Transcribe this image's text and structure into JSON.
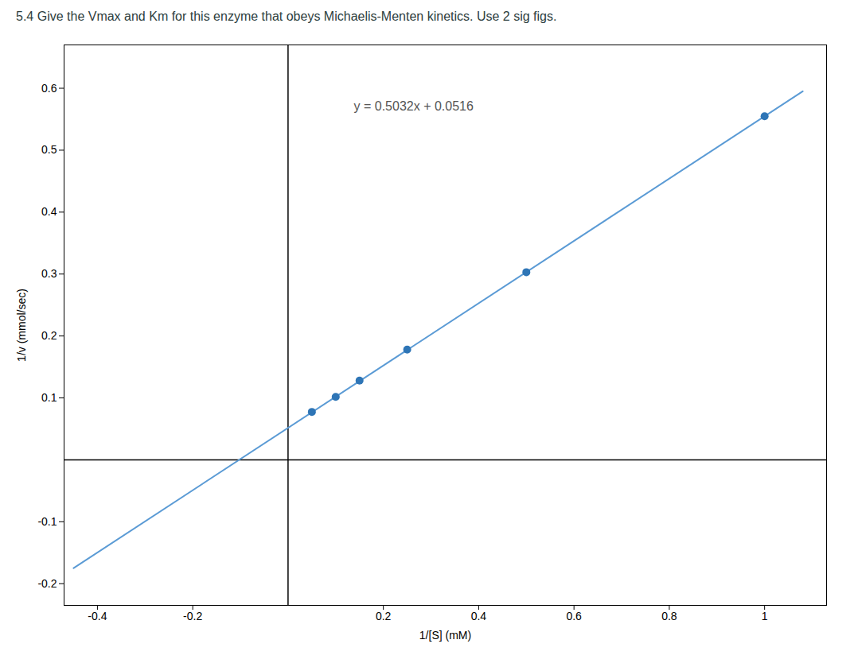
{
  "chart_data": {
    "type": "scatter",
    "title": "5.4 Give the Vmax and Km for this enzyme that obeys Michaelis-Menten kinetics. Use 2 sig figs.",
    "xlabel": "1/[S] (mM)",
    "ylabel": "1/v (mmol/sec)",
    "annotation": "y = 0.5032x + 0.0516",
    "series": [
      {
        "type": "line",
        "color": "#5b9bd5",
        "x": [
          -0.45,
          1.08
        ],
        "values": [
          -0.17484,
          0.595056
        ]
      },
      {
        "type": "scatter",
        "color": "#2e75b6",
        "x": [
          0.05,
          0.1,
          0.15,
          0.25,
          0.5,
          1.0
        ],
        "values": [
          0.0774,
          0.1016,
          0.128,
          0.178,
          0.303,
          0.5548
        ]
      }
    ],
    "xlim": [
      -0.47,
      1.13
    ],
    "ylim": [
      -0.235,
      0.67
    ],
    "xticks": [
      -0.4,
      -0.2,
      0.2,
      0.4,
      0.6,
      0.8,
      1
    ],
    "yticks": [
      -0.2,
      -0.1,
      0.1,
      0.2,
      0.3,
      0.4,
      0.5,
      0.6
    ],
    "grid": false
  }
}
